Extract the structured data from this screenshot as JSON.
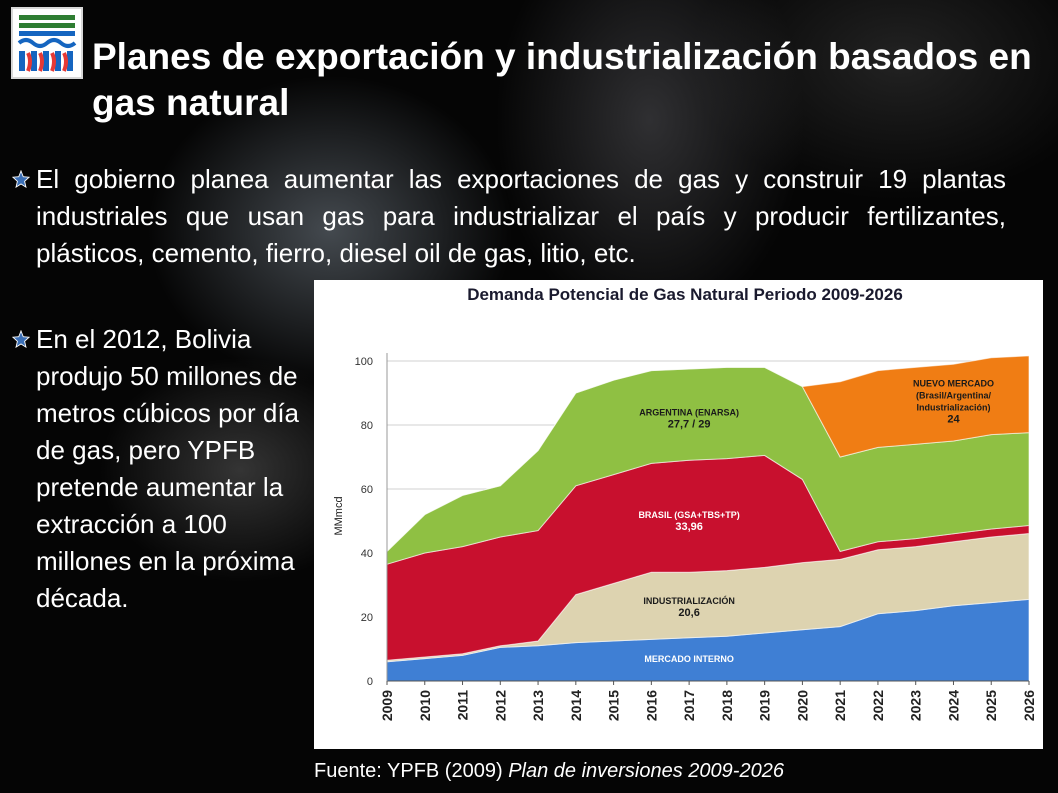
{
  "slide": {
    "title": "Planes de exportación y industrialización basados en gas natural",
    "bullets": [
      "El gobierno planea aumentar las exportaciones de gas y construir 19 plantas industriales que usan gas para industrializar el país y producir fertilizantes, plásticos, cemento, fierro, diesel oil de gas, litio, etc.",
      "En el 2012, Bolivia produjo 50 millones de metros cúbicos por día de gas, pero YPFB pretende aumentar la extracción a 100 millones en la próxima década."
    ],
    "source_prefix": "Fuente: YPFB (2009) ",
    "source_title": "Plan de inversiones 2009-2026"
  },
  "colors": {
    "mercado_interno": "#3f7fd4",
    "industrializacion": "#ddd3b0",
    "brasil": "#c8102e",
    "argentina": "#8fc043",
    "nuevo_mercado": "#f07d14"
  },
  "chart_data": {
    "type": "area",
    "stacked": true,
    "title": "Demanda Potencial de Gas Natural Periodo 2009-2026",
    "ylabel": "MMmcd",
    "ylim": [
      0,
      100
    ],
    "yticks": [
      0,
      20,
      40,
      60,
      80,
      100
    ],
    "grid": true,
    "x": [
      "2009",
      "2010",
      "2011",
      "2012",
      "2013",
      "2014",
      "2015",
      "2016",
      "2017",
      "2018",
      "2019",
      "2020",
      "2021",
      "2022",
      "2023",
      "2024",
      "2025",
      "2026"
    ],
    "series": [
      {
        "name": "MERCADO INTERNO",
        "color": "#3f7fd4",
        "values": [
          6,
          7,
          8,
          10.5,
          11,
          12,
          12.5,
          13,
          13.5,
          14,
          15,
          16,
          17,
          21,
          22,
          23.5,
          24.5,
          25.5
        ]
      },
      {
        "name": "INDUSTRIALIZACIÓN",
        "color": "#ddd3b0",
        "values": [
          0.5,
          0.5,
          0.5,
          0.5,
          1.5,
          15,
          18,
          21,
          20.5,
          20.5,
          20.5,
          21,
          21,
          20,
          20,
          20,
          20.5,
          20.6
        ]
      },
      {
        "name": "BRASIL (GSA+TBS+TP)",
        "color": "#c8102e",
        "values": [
          30,
          32.5,
          33.5,
          34,
          34.5,
          34,
          34,
          34,
          35,
          35,
          35,
          26,
          2.5,
          2.5,
          2.5,
          2.5,
          2.5,
          2.5
        ]
      },
      {
        "name": "ARGENTINA (ENARSA)",
        "color": "#8fc043",
        "values": [
          4,
          12,
          16,
          16,
          25,
          29,
          29.5,
          29,
          28.5,
          28.5,
          27.5,
          29,
          29.5,
          29.5,
          29.5,
          29,
          29.5,
          29
        ]
      },
      {
        "name": "NUEVO MERCADO",
        "color": "#f07d14",
        "values": [
          0,
          0,
          0,
          0,
          0,
          0,
          0,
          0,
          0,
          0,
          0,
          0,
          23.5,
          24,
          24,
          24,
          24,
          24
        ]
      }
    ],
    "annotations": [
      {
        "series": "MERCADO INTERNO",
        "text": [
          "MERCADO INTERNO"
        ],
        "at_x": "2017",
        "at_y": 6
      },
      {
        "series": "INDUSTRIALIZACIÓN",
        "text": [
          "INDUSTRIALIZACIÓN",
          "20,6"
        ],
        "at_x": "2017",
        "at_y": 24
      },
      {
        "series": "BRASIL (GSA+TBS+TP)",
        "text": [
          "BRASIL (GSA+TBS+TP)",
          "33,96"
        ],
        "at_x": "2017",
        "at_y": 51
      },
      {
        "series": "ARGENTINA (ENARSA)",
        "text": [
          "ARGENTINA (ENARSA)",
          "27,7 / 29"
        ],
        "at_x": "2017",
        "at_y": 83
      },
      {
        "series": "NUEVO MERCADO",
        "text": [
          "NUEVO MERCADO",
          "(Brasil/Argentina/",
          "Industrialización)",
          "24"
        ],
        "at_x": "2024",
        "at_y": 92
      }
    ]
  }
}
